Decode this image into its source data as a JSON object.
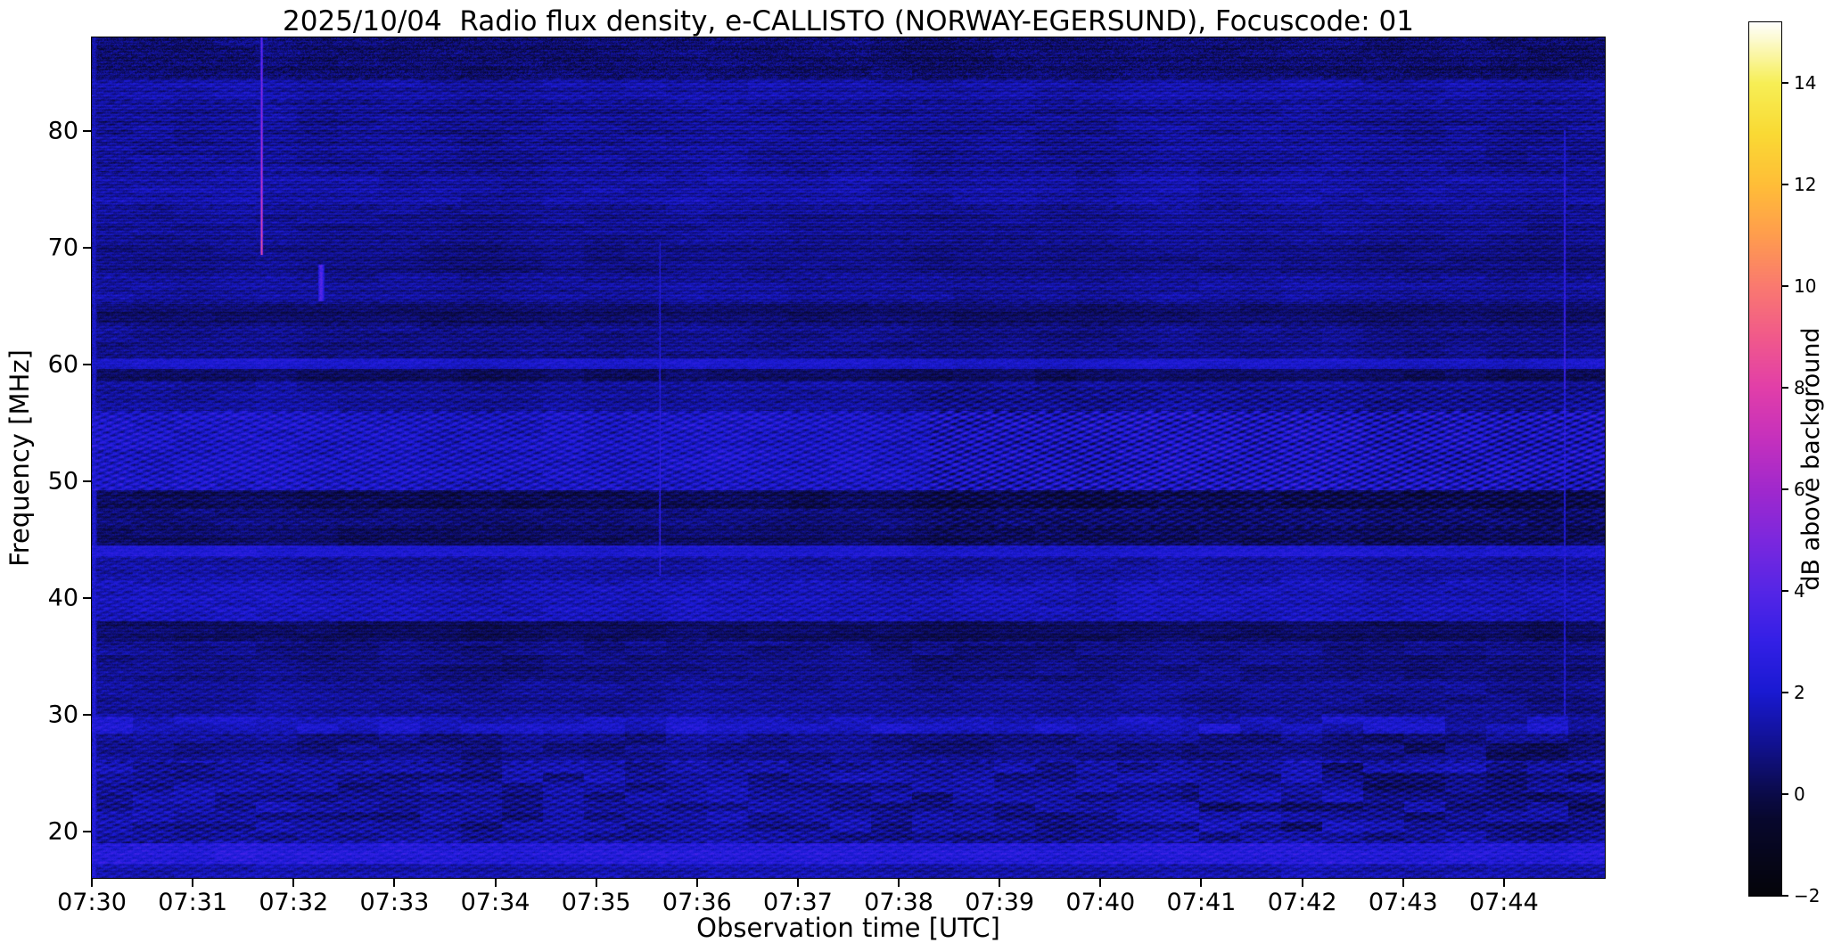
{
  "title": "2025/10/04  Radio flux density, e-CALLISTO (NORWAY-EGERSUND), Focuscode: 01",
  "station": "NORWAY-EGERSUND",
  "date": "2025/10/04",
  "focuscode": "01",
  "chart_data": {
    "type": "heatmap",
    "xlabel": "Observation time [UTC]",
    "ylabel": "Frequency [MHz]",
    "x_tick_labels": [
      "07:30",
      "07:31",
      "07:32",
      "07:33",
      "07:34",
      "07:35",
      "07:36",
      "07:37",
      "07:38",
      "07:39",
      "07:40",
      "07:41",
      "07:42",
      "07:43",
      "07:44"
    ],
    "y_tick_values": [
      20,
      30,
      40,
      50,
      60,
      70,
      80
    ],
    "time_start_utc": "07:30",
    "time_end_utc": "07:45",
    "time_span_min": 15,
    "freq_range_mhz": [
      16,
      88
    ],
    "grid": false,
    "colorbar": {
      "label": "dB above background",
      "ticks": [
        -2,
        0,
        2,
        4,
        6,
        8,
        10,
        12,
        14
      ],
      "range": [
        -2,
        15.2
      ],
      "stops": [
        {
          "v": -2.0,
          "color": "#05050a"
        },
        {
          "v": -0.5,
          "color": "#08082e"
        },
        {
          "v": 0.0,
          "color": "#0b0b4a"
        },
        {
          "v": 1.0,
          "color": "#121293"
        },
        {
          "v": 2.0,
          "color": "#1a1ad2"
        },
        {
          "v": 3.0,
          "color": "#3420e6"
        },
        {
          "v": 4.0,
          "color": "#5626e6"
        },
        {
          "v": 5.0,
          "color": "#7c28de"
        },
        {
          "v": 6.0,
          "color": "#a129cd"
        },
        {
          "v": 7.0,
          "color": "#c631bd"
        },
        {
          "v": 8.0,
          "color": "#e23fa9"
        },
        {
          "v": 9.0,
          "color": "#f15a8b"
        },
        {
          "v": 10.0,
          "color": "#fa7a70"
        },
        {
          "v": 11.0,
          "color": "#ff9d4e"
        },
        {
          "v": 12.0,
          "color": "#ffbe38"
        },
        {
          "v": 13.0,
          "color": "#fada34"
        },
        {
          "v": 14.0,
          "color": "#f7ef56"
        },
        {
          "v": 15.2,
          "color": "#ffffff"
        }
      ]
    },
    "background_texture": {
      "description": "Quiet-sun dynamic spectrum: dark navy background with horizontal RFI bands and fine diagonal fringe ripple; values mostly -1 to +3 dB above background.",
      "default_speckle": 0.85,
      "default_blotch": 0.35,
      "bands": [
        {
          "f0": 16.0,
          "f1": 17.2,
          "base": 1.4,
          "ripple": 0.5,
          "stripe": 0.3
        },
        {
          "f0": 17.2,
          "f1": 19.0,
          "base": 2.35,
          "ripple": 0.5,
          "stripe": 0.3
        },
        {
          "f0": 19.0,
          "f1": 26.0,
          "base": 1.15,
          "ripple": 0.75,
          "stripe": 0.3,
          "blotch": 0.9
        },
        {
          "f0": 26.0,
          "f1": 28.4,
          "base": 0.85,
          "ripple": 0.5,
          "stripe": 0.3,
          "blotch": 0.6
        },
        {
          "f0": 28.4,
          "f1": 29.8,
          "base": 1.75,
          "ripple": 0.4,
          "stripe": 0.2,
          "blotch": 0.7
        },
        {
          "f0": 29.8,
          "f1": 33.0,
          "base": 1.05,
          "ripple": 0.45,
          "stripe": 0.3
        },
        {
          "f0": 33.0,
          "f1": 36.3,
          "base": 0.8,
          "ripple": 0.4,
          "stripe": 0.35,
          "blotch": 0.5
        },
        {
          "f0": 36.3,
          "f1": 38.0,
          "base": 0.35,
          "ripple": 0.3,
          "stripe": 0.3
        },
        {
          "f0": 38.0,
          "f1": 41.5,
          "base": 1.6,
          "ripple": 0.6,
          "stripe": 0.3
        },
        {
          "f0": 41.5,
          "f1": 43.6,
          "base": 1.2,
          "ripple": 0.5,
          "stripe": 0.3
        },
        {
          "f0": 43.6,
          "f1": 44.5,
          "base": 2.1,
          "ripple": 0.25,
          "stripe": 0.2
        },
        {
          "f0": 44.5,
          "f1": 46.0,
          "base": 0.35,
          "ripple": 0.35,
          "stripe": 0.3
        },
        {
          "f0": 46.0,
          "f1": 47.6,
          "base": 0.6,
          "ripple": 0.45,
          "stripe": 0.3
        },
        {
          "f0": 47.6,
          "f1": 49.2,
          "base": 0.15,
          "ripple": 0.5,
          "stripe": 0.3
        },
        {
          "f0": 49.2,
          "f1": 56.0,
          "base": 1.8,
          "ripple": 0.95,
          "stripe": 0.25
        },
        {
          "f0": 56.0,
          "f1": 58.6,
          "base": 1.1,
          "ripple": 0.5,
          "stripe": 0.3
        },
        {
          "f0": 58.6,
          "f1": 59.6,
          "base": 0.3,
          "ripple": 0.3,
          "stripe": 0.25
        },
        {
          "f0": 59.6,
          "f1": 60.5,
          "base": 1.9,
          "ripple": 0.25,
          "stripe": 0.2
        },
        {
          "f0": 60.5,
          "f1": 63.5,
          "base": 0.85,
          "ripple": 0.4,
          "stripe": 0.35
        },
        {
          "f0": 63.5,
          "f1": 65.2,
          "base": 0.4,
          "ripple": 0.3,
          "stripe": 0.3
        },
        {
          "f0": 65.2,
          "f1": 67.5,
          "base": 1.15,
          "ripple": 0.4,
          "stripe": 0.4
        },
        {
          "f0": 67.5,
          "f1": 70.5,
          "base": 0.8,
          "ripple": 0.35,
          "stripe": 0.4
        },
        {
          "f0": 70.5,
          "f1": 73.5,
          "base": 1.0,
          "ripple": 0.35,
          "stripe": 0.5
        },
        {
          "f0": 73.5,
          "f1": 76.5,
          "base": 1.25,
          "ripple": 0.4,
          "stripe": 0.5
        },
        {
          "f0": 76.5,
          "f1": 82.5,
          "base": 1.05,
          "ripple": 0.45,
          "stripe": 0.55
        },
        {
          "f0": 82.5,
          "f1": 84.5,
          "base": 1.3,
          "ripple": 0.45,
          "stripe": 0.45
        },
        {
          "f0": 84.5,
          "f1": 88.0,
          "base": 0.5,
          "ripple": 0.3,
          "stripe": 0.35,
          "speckle": 1.5
        }
      ],
      "time_mods": [
        {
          "t0": 8.3,
          "t1": 15.0,
          "f0": 44,
          "f1": 58,
          "ripple_mult": 1.55,
          "base_add": -0.12
        },
        {
          "t0": 10.8,
          "t1": 15.0,
          "f0": 20,
          "f1": 32,
          "base_add": -0.15,
          "blotch_mult": 1.6
        }
      ]
    },
    "features": [
      {
        "name": "left-edge-bright-column",
        "t": 0.02,
        "f0": 16.0,
        "f1": 88.0,
        "w": 0.05,
        "db0": 2.5,
        "db1": 1.5
      },
      {
        "name": "pink-burst-0731.7",
        "t": 1.68,
        "f0": 69.5,
        "f1": 88.0,
        "w": 0.02,
        "db0": 9.0,
        "db1": 4.5
      },
      {
        "name": "purple-patch-0732.3",
        "t": 2.27,
        "f0": 65.5,
        "f1": 68.5,
        "w": 0.06,
        "db0": 3.8,
        "db1": 3.8
      },
      {
        "name": "faint-pink-streak-0735.6",
        "t": 5.63,
        "f0": 42.0,
        "f1": 70.5,
        "w": 0.013,
        "db0": 3.2,
        "db1": 2.3
      },
      {
        "name": "right-blue-streak-0744.6",
        "t": 14.6,
        "f0": 30.0,
        "f1": 80.0,
        "w": 0.016,
        "db0": 2.7,
        "db1": 2.7
      },
      {
        "name": "right-pink-tinge-0744.6",
        "t": 14.6,
        "f0": 58.0,
        "f1": 76.0,
        "w": 0.02,
        "db0": 3.5,
        "db1": 3.2
      }
    ]
  }
}
